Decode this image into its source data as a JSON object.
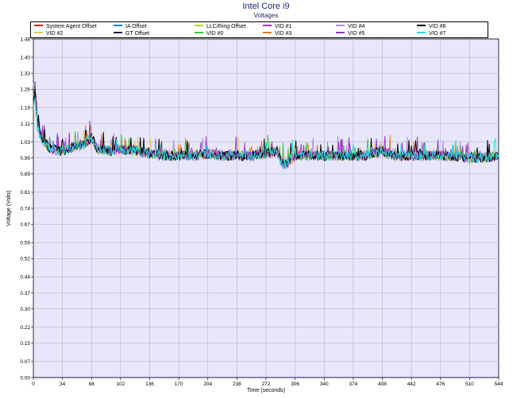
{
  "chart_data": {
    "type": "line",
    "title": "Intel Core i9",
    "subtitle": "Voltages",
    "xlabel": "Time (seconds)",
    "ylabel": "Voltage (Volts)",
    "xlim": [
      0,
      544
    ],
    "ylim": [
      0,
      1.48
    ],
    "x_ticks": [
      "0",
      "34",
      "68",
      "102",
      "136",
      "170",
      "204",
      "238",
      "272",
      "306",
      "340",
      "374",
      "408",
      "442",
      "476",
      "510",
      "544"
    ],
    "y_ticks": [
      "0.00",
      "0.07",
      "0.15",
      "0.22",
      "0.30",
      "0.37",
      "0.44",
      "0.52",
      "0.59",
      "0.67",
      "0.74",
      "0.81",
      "0.89",
      "0.96",
      "1.03",
      "1.11",
      "1.18",
      "1.26",
      "1.33",
      "1.40",
      "1.48"
    ],
    "grid": true,
    "legend_position": "top",
    "series": [
      {
        "name": "System Agent Offset",
        "color": "#e8001c",
        "level": 0.0,
        "style": "flat"
      },
      {
        "name": "IA Offset",
        "color": "#1e7fd8",
        "level": 0.0,
        "style": "flat"
      },
      {
        "name": "LLC/Ring Offset",
        "color": "#b5d42a",
        "level": 0.0,
        "style": "flat"
      },
      {
        "name": "VID #1",
        "color": "#9b30c8",
        "level": 0.98,
        "style": "voltage"
      },
      {
        "name": "VID #4",
        "color": "#b38ad9",
        "level": 0.98,
        "style": "voltage"
      },
      {
        "name": "VID #6",
        "color": "#000000",
        "level": 0.98,
        "style": "voltage"
      },
      {
        "name": "VID #2",
        "color": "#e8c85a",
        "level": 0.98,
        "style": "voltage"
      },
      {
        "name": "GT Offset",
        "color": "#1a1a4a",
        "level": 0.0,
        "style": "flat"
      },
      {
        "name": "VID #0",
        "color": "#38c838",
        "level": 0.98,
        "style": "voltage"
      },
      {
        "name": "VID #3",
        "color": "#e07a20",
        "level": 0.98,
        "style": "voltage"
      },
      {
        "name": "VID #5",
        "color": "#8a3ad0",
        "level": 0.98,
        "style": "voltage"
      },
      {
        "name": "VID #7",
        "color": "#20e0e0",
        "level": 0.98,
        "style": "voltage"
      }
    ],
    "voltage_profile": {
      "x": [
        0,
        2,
        5,
        10,
        20,
        34,
        50,
        60,
        68,
        75,
        90,
        102,
        120,
        136,
        150,
        170,
        190,
        204,
        220,
        238,
        255,
        272,
        285,
        290,
        295,
        306,
        320,
        340,
        355,
        374,
        390,
        408,
        420,
        442,
        460,
        476,
        490,
        510,
        525,
        544
      ],
      "y": [
        1.2,
        1.24,
        1.1,
        1.04,
        1.0,
        0.99,
        1.01,
        1.02,
        1.05,
        1.0,
        0.99,
        1.0,
        0.99,
        0.98,
        0.97,
        0.97,
        0.97,
        0.98,
        0.97,
        0.97,
        0.97,
        0.98,
        0.99,
        0.94,
        0.93,
        0.97,
        0.97,
        0.97,
        0.97,
        0.97,
        0.97,
        0.99,
        0.97,
        0.97,
        0.97,
        0.97,
        0.97,
        0.96,
        0.96,
        0.97
      ]
    }
  }
}
